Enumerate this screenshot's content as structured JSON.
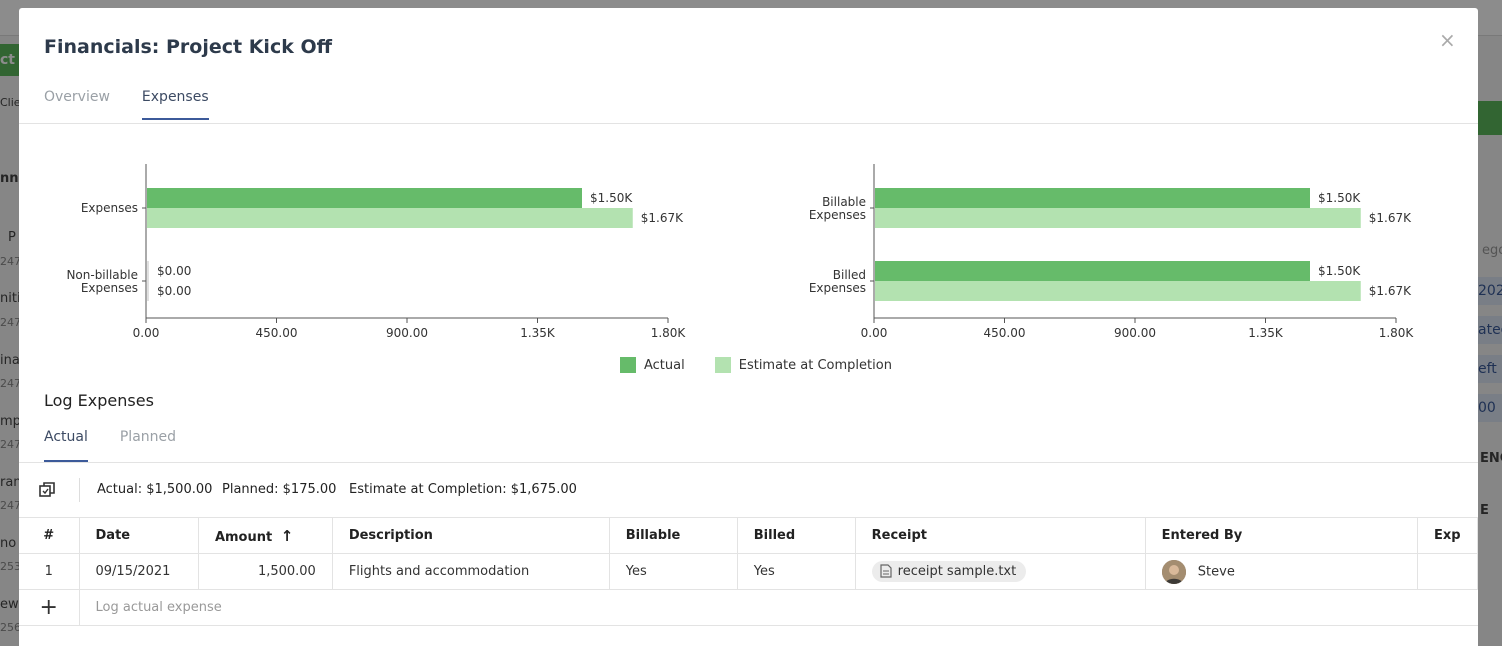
{
  "background": {
    "green_button_label": "ct",
    "fragments": [
      "Clie",
      "nne",
      "P",
      "247",
      "nitia",
      "247",
      "ina",
      "247",
      "mp",
      "247",
      "ran",
      "247",
      "no",
      "253",
      "ew",
      "256"
    ],
    "right_fragments": [
      "ego",
      "202",
      "ated",
      "eft",
      "00",
      "ENC",
      "E"
    ]
  },
  "modal": {
    "title": "Financials: Project Kick Off",
    "close_label": "×",
    "tabs": [
      "Overview",
      "Expenses"
    ],
    "active_tab": "Expenses"
  },
  "charts": [
    {
      "type": "bar",
      "orientation": "horizontal",
      "categories": [
        "Expenses",
        "Non-billable Expenses"
      ],
      "series": [
        {
          "name": "Actual",
          "values": [
            1500,
            0
          ],
          "labels": [
            "$1.50K",
            "$0.00"
          ]
        },
        {
          "name": "Estimate at Completion",
          "values": [
            1675,
            0
          ],
          "labels": [
            "$1.67K",
            "$0.00"
          ]
        }
      ],
      "xlim": [
        0,
        1800
      ],
      "x_ticks": [
        "0.00",
        "450.00",
        "900.00",
        "1.35K",
        "1.80K"
      ]
    },
    {
      "type": "bar",
      "orientation": "horizontal",
      "categories": [
        "Billable Expenses",
        "Billed Expenses"
      ],
      "series": [
        {
          "name": "Actual",
          "values": [
            1500,
            1500
          ],
          "labels": [
            "$1.50K",
            "$1.50K"
          ]
        },
        {
          "name": "Estimate at Completion",
          "values": [
            1675,
            1675
          ],
          "labels": [
            "$1.67K",
            "$1.67K"
          ]
        }
      ],
      "xlim": [
        0,
        1800
      ],
      "x_ticks": [
        "0.00",
        "450.00",
        "900.00",
        "1.35K",
        "1.80K"
      ]
    }
  ],
  "legend": [
    {
      "label": "Actual",
      "color": "#66bb6a"
    },
    {
      "label": "Estimate at Completion",
      "color": "#b3e2b0"
    }
  ],
  "log": {
    "title": "Log Expenses",
    "tabs": [
      "Actual",
      "Planned"
    ],
    "active_tab": "Actual",
    "summary": {
      "actual": "Actual: $1,500.00",
      "planned": "Planned: $175.00",
      "eac": "Estimate at Completion: $1,675.00"
    },
    "columns": [
      "#",
      "Date",
      "Amount",
      "Description",
      "Billable",
      "Billed",
      "Receipt",
      "Entered By",
      "Exp"
    ],
    "sort_indicator": "↑",
    "rows": [
      {
        "num": "1",
        "date": "09/15/2021",
        "amount": "1,500.00",
        "description": "Flights and accommodation",
        "billable": "Yes",
        "billed": "Yes",
        "receipt": "receipt sample.txt",
        "entered_by": "Steve",
        "exp": ""
      }
    ],
    "add_label": "Log actual expense"
  }
}
